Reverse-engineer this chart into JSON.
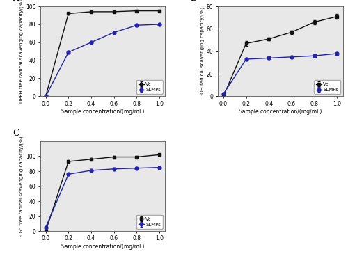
{
  "x": [
    0.0,
    0.2,
    0.4,
    0.6,
    0.8,
    1.0
  ],
  "A_vc": [
    0,
    92,
    94,
    94,
    95,
    95
  ],
  "A_slmps": [
    0,
    49,
    60,
    71,
    79,
    80
  ],
  "B_vc": [
    0,
    47,
    51,
    57,
    66,
    71
  ],
  "B_slmps": [
    2,
    33,
    34,
    35,
    36,
    38
  ],
  "C_vc": [
    0,
    93,
    96,
    99,
    99,
    102
  ],
  "C_slmps": [
    5,
    76,
    81,
    83,
    84,
    85
  ],
  "vc_color": "#111111",
  "slmps_color": "#2222aa",
  "A_ylabel": "DPPH free radical scavenging capacity/(%)",
  "B_ylabel": "·OH radical scavenging capacity/(%)",
  "C_ylabel": "·O₂⁻ free radical scavenging capacity/(%)",
  "xlabel": "Sample concentration/(mg/mL)",
  "A_ylim": [
    0,
    100
  ],
  "B_ylim": [
    0,
    80
  ],
  "C_ylim": [
    0,
    120
  ],
  "A_yticks": [
    0,
    20,
    40,
    60,
    80,
    100
  ],
  "B_yticks": [
    0,
    20,
    40,
    60,
    80
  ],
  "C_yticks": [
    0,
    20,
    40,
    60,
    80,
    100
  ],
  "xticks": [
    0.0,
    0.2,
    0.4,
    0.6,
    0.8,
    1.0
  ],
  "xticklabels": [
    "0.0",
    "0.2",
    "0.4",
    "0.6",
    "0.8",
    "1.0"
  ],
  "legend_vc": "Vc",
  "legend_slmps": "SLMPs",
  "marker_vc": "s",
  "marker_slmps": "o",
  "markersize": 3.5,
  "linewidth": 1.0,
  "errorbar_A_vc": [
    0,
    1.2,
    1.0,
    1.1,
    1.0,
    1.0
  ],
  "errorbar_A_slmps": [
    0,
    1.5,
    1.2,
    1.3,
    1.2,
    1.2
  ],
  "errorbar_B_vc": [
    0,
    2.0,
    1.5,
    1.5,
    2.0,
    2.0
  ],
  "errorbar_B_slmps": [
    0,
    1.2,
    1.0,
    1.0,
    1.0,
    1.0
  ],
  "errorbar_C_vc": [
    0,
    1.5,
    1.5,
    1.5,
    1.2,
    1.5
  ],
  "errorbar_C_slmps": [
    0,
    1.5,
    1.2,
    1.2,
    1.2,
    1.2
  ],
  "facecolor": "#e8e8e8"
}
